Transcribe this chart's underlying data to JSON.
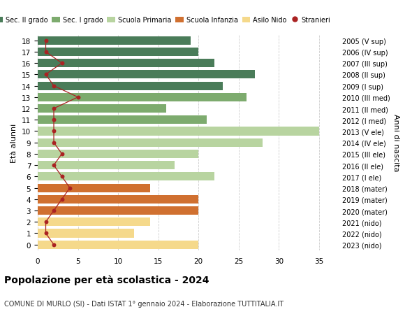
{
  "ages": [
    18,
    17,
    16,
    15,
    14,
    13,
    12,
    11,
    10,
    9,
    8,
    7,
    6,
    5,
    4,
    3,
    2,
    1,
    0
  ],
  "years": [
    "2005 (V sup)",
    "2006 (IV sup)",
    "2007 (III sup)",
    "2008 (II sup)",
    "2009 (I sup)",
    "2010 (III med)",
    "2011 (II med)",
    "2012 (I med)",
    "2013 (V ele)",
    "2014 (IV ele)",
    "2015 (III ele)",
    "2016 (II ele)",
    "2017 (I ele)",
    "2018 (mater)",
    "2019 (mater)",
    "2020 (mater)",
    "2021 (nido)",
    "2022 (nido)",
    "2023 (nido)"
  ],
  "values": [
    19,
    20,
    22,
    27,
    23,
    26,
    16,
    21,
    35,
    28,
    20,
    17,
    22,
    14,
    20,
    20,
    14,
    12,
    20
  ],
  "stranieri": [
    1,
    1,
    3,
    1,
    2,
    5,
    2,
    2,
    2,
    2,
    3,
    2,
    3,
    4,
    3,
    2,
    1,
    1,
    2
  ],
  "bar_colors": [
    "#4a7c59",
    "#4a7c59",
    "#4a7c59",
    "#4a7c59",
    "#4a7c59",
    "#7dab6e",
    "#7dab6e",
    "#7dab6e",
    "#b8d4a0",
    "#b8d4a0",
    "#b8d4a0",
    "#b8d4a0",
    "#b8d4a0",
    "#d07030",
    "#d07030",
    "#d07030",
    "#f5d98b",
    "#f5d98b",
    "#f5d98b"
  ],
  "legend_labels": [
    "Sec. II grado",
    "Sec. I grado",
    "Scuola Primaria",
    "Scuola Infanzia",
    "Asilo Nido",
    "Stranieri"
  ],
  "legend_colors": [
    "#4a7c59",
    "#7dab6e",
    "#b8d4a0",
    "#d07030",
    "#f5d98b",
    "#aa2222"
  ],
  "title": "Popolazione per età scolastica - 2024",
  "subtitle": "COMUNE DI MURLO (SI) - Dati ISTAT 1° gennaio 2024 - Elaborazione TUTTITALIA.IT",
  "ylabel": "Età alunni",
  "right_ylabel": "Anni di nascita",
  "xlabel_vals": [
    0,
    5,
    10,
    15,
    20,
    25,
    30,
    35
  ],
  "xlim": [
    0,
    37
  ],
  "ylim": [
    -0.5,
    18.5
  ],
  "background_color": "#ffffff",
  "grid_color": "#cccccc",
  "stranieri_color": "#aa2222"
}
